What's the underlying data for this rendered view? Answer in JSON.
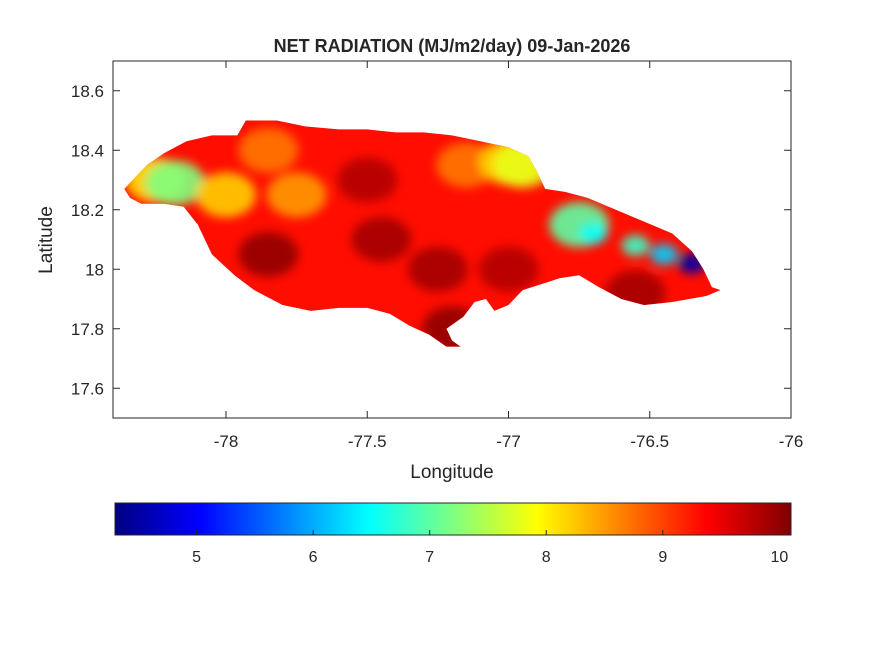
{
  "chart_data": {
    "type": "heatmap",
    "title": "NET RADIATION (MJ/m2/day) 09-Jan-2026",
    "xlabel": "Longitude",
    "ylabel": "Latitude",
    "xlim": [
      -78.4,
      -76.0
    ],
    "ylim": [
      17.5,
      18.7
    ],
    "x_ticks": [
      -78,
      -77.5,
      -77,
      -76.5,
      -76
    ],
    "x_tick_labels": [
      "-78",
      "-77.5",
      "-77",
      "-76.5",
      "-76"
    ],
    "y_ticks": [
      17.6,
      17.8,
      18.0,
      18.2,
      18.4,
      18.6
    ],
    "y_tick_labels": [
      "17.6",
      "17.8",
      "18",
      "18.2",
      "18.4",
      "18.6"
    ],
    "grid": false,
    "colormap": "jet",
    "colorbar": {
      "orientation": "horizontal",
      "location": "below",
      "range": [
        4.3,
        10.1
      ],
      "ticks": [
        5,
        6,
        7,
        8,
        9,
        10
      ],
      "tick_labels": [
        "5",
        "6",
        "7",
        "8",
        "9",
        "10"
      ]
    },
    "region_outline": [
      [
        -78.36,
        18.27
      ],
      [
        -78.32,
        18.31
      ],
      [
        -78.28,
        18.35
      ],
      [
        -78.22,
        18.39
      ],
      [
        -78.14,
        18.43
      ],
      [
        -78.05,
        18.45
      ],
      [
        -77.96,
        18.45
      ],
      [
        -77.93,
        18.5
      ],
      [
        -77.82,
        18.5
      ],
      [
        -77.72,
        18.48
      ],
      [
        -77.6,
        18.47
      ],
      [
        -77.5,
        18.47
      ],
      [
        -77.4,
        18.46
      ],
      [
        -77.3,
        18.46
      ],
      [
        -77.2,
        18.45
      ],
      [
        -77.1,
        18.43
      ],
      [
        -77.0,
        18.41
      ],
      [
        -76.93,
        18.38
      ],
      [
        -76.9,
        18.33
      ],
      [
        -76.87,
        18.27
      ],
      [
        -76.8,
        18.26
      ],
      [
        -76.72,
        18.24
      ],
      [
        -76.62,
        18.2
      ],
      [
        -76.52,
        18.16
      ],
      [
        -76.42,
        18.12
      ],
      [
        -76.35,
        18.06
      ],
      [
        -76.31,
        18.0
      ],
      [
        -76.28,
        17.94
      ],
      [
        -76.25,
        17.93
      ],
      [
        -76.3,
        17.91
      ],
      [
        -76.42,
        17.89
      ],
      [
        -76.52,
        17.88
      ],
      [
        -76.6,
        17.9
      ],
      [
        -76.68,
        17.94
      ],
      [
        -76.75,
        17.98
      ],
      [
        -76.82,
        17.97
      ],
      [
        -76.85,
        17.96
      ],
      [
        -76.95,
        17.93
      ],
      [
        -77.0,
        17.88
      ],
      [
        -77.05,
        17.86
      ],
      [
        -77.08,
        17.9
      ],
      [
        -77.12,
        17.89
      ],
      [
        -77.16,
        17.84
      ],
      [
        -77.22,
        17.8
      ],
      [
        -77.2,
        17.76
      ],
      [
        -77.17,
        17.74
      ],
      [
        -77.22,
        17.74
      ],
      [
        -77.28,
        17.78
      ],
      [
        -77.35,
        17.81
      ],
      [
        -77.42,
        17.85
      ],
      [
        -77.5,
        17.87
      ],
      [
        -77.6,
        17.87
      ],
      [
        -77.7,
        17.86
      ],
      [
        -77.8,
        17.88
      ],
      [
        -77.9,
        17.93
      ],
      [
        -77.97,
        17.98
      ],
      [
        -78.05,
        18.05
      ],
      [
        -78.1,
        18.15
      ],
      [
        -78.15,
        18.21
      ],
      [
        -78.22,
        18.22
      ],
      [
        -78.3,
        18.22
      ],
      [
        -78.34,
        18.24
      ]
    ],
    "hotspots": [
      {
        "lon": -78.25,
        "lat": 18.3,
        "value": 8.1
      },
      {
        "lon": -78.18,
        "lat": 18.29,
        "value": 7.2
      },
      {
        "lon": -78.0,
        "lat": 18.25,
        "value": 8.2
      },
      {
        "lon": -77.85,
        "lat": 18.4,
        "value": 8.7
      },
      {
        "lon": -77.75,
        "lat": 18.25,
        "value": 8.5
      },
      {
        "lon": -77.85,
        "lat": 18.05,
        "value": 10.0
      },
      {
        "lon": -77.45,
        "lat": 18.1,
        "value": 9.9
      },
      {
        "lon": -77.25,
        "lat": 18.0,
        "value": 9.9
      },
      {
        "lon": -77.5,
        "lat": 18.3,
        "value": 9.8
      },
      {
        "lon": -77.2,
        "lat": 17.8,
        "value": 10.0
      },
      {
        "lon": -77.15,
        "lat": 18.35,
        "value": 8.7
      },
      {
        "lon": -77.0,
        "lat": 18.36,
        "value": 8.2
      },
      {
        "lon": -76.95,
        "lat": 18.35,
        "value": 7.8
      },
      {
        "lon": -77.0,
        "lat": 18.0,
        "value": 9.8
      },
      {
        "lon": -76.75,
        "lat": 18.15,
        "value": 7.0
      },
      {
        "lon": -76.7,
        "lat": 18.12,
        "value": 6.5
      },
      {
        "lon": -76.55,
        "lat": 18.08,
        "value": 6.8
      },
      {
        "lon": -76.45,
        "lat": 18.05,
        "value": 6.2
      },
      {
        "lon": -76.35,
        "lat": 18.02,
        "value": 4.5
      },
      {
        "lon": -76.55,
        "lat": 17.92,
        "value": 9.9
      }
    ]
  }
}
